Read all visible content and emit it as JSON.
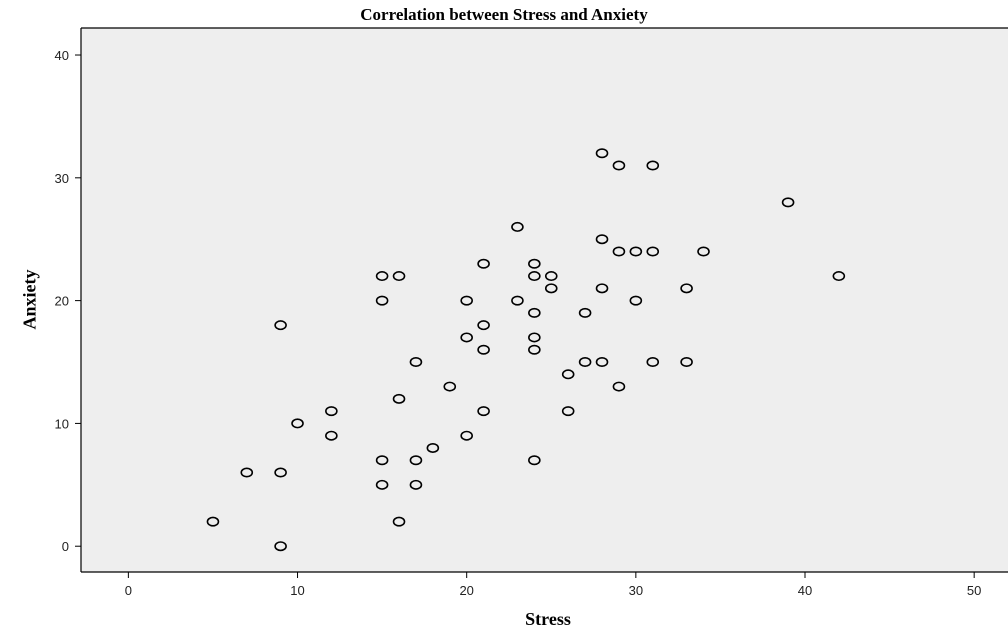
{
  "chart_data": {
    "type": "scatter",
    "title": "Correlation between Stress and Anxiety",
    "xlabel": "Stress",
    "ylabel": "Anxiety",
    "xlim": [
      -2.8,
      52
    ],
    "ylim": [
      -2.1,
      42.2
    ],
    "xticks": [
      0,
      10,
      20,
      30,
      40,
      50
    ],
    "yticks": [
      0,
      10,
      20,
      30,
      40
    ],
    "xtick_labels": [
      "0",
      "10",
      "20",
      "30",
      "40",
      "50"
    ],
    "ytick_labels": [
      "0",
      "10",
      "20",
      "30",
      "40"
    ],
    "grid": false,
    "plot_background": "#eeeeee",
    "marker_color": "#000000",
    "points": [
      {
        "x": 5,
        "y": 2
      },
      {
        "x": 7,
        "y": 6
      },
      {
        "x": 9,
        "y": 6
      },
      {
        "x": 9,
        "y": 0
      },
      {
        "x": 9,
        "y": 18
      },
      {
        "x": 10,
        "y": 10
      },
      {
        "x": 12,
        "y": 11
      },
      {
        "x": 12,
        "y": 9
      },
      {
        "x": 15,
        "y": 22
      },
      {
        "x": 15,
        "y": 20
      },
      {
        "x": 15,
        "y": 7
      },
      {
        "x": 15,
        "y": 5
      },
      {
        "x": 16,
        "y": 22
      },
      {
        "x": 16,
        "y": 12
      },
      {
        "x": 16,
        "y": 2
      },
      {
        "x": 17,
        "y": 15
      },
      {
        "x": 17,
        "y": 7
      },
      {
        "x": 17,
        "y": 5
      },
      {
        "x": 18,
        "y": 8
      },
      {
        "x": 19,
        "y": 13
      },
      {
        "x": 20,
        "y": 20
      },
      {
        "x": 20,
        "y": 17
      },
      {
        "x": 20,
        "y": 9
      },
      {
        "x": 21,
        "y": 23
      },
      {
        "x": 21,
        "y": 18
      },
      {
        "x": 21,
        "y": 16
      },
      {
        "x": 21,
        "y": 11
      },
      {
        "x": 23,
        "y": 26
      },
      {
        "x": 23,
        "y": 20
      },
      {
        "x": 24,
        "y": 23
      },
      {
        "x": 24,
        "y": 22
      },
      {
        "x": 24,
        "y": 19
      },
      {
        "x": 24,
        "y": 17
      },
      {
        "x": 24,
        "y": 16
      },
      {
        "x": 24,
        "y": 7
      },
      {
        "x": 25,
        "y": 22
      },
      {
        "x": 25,
        "y": 21
      },
      {
        "x": 26,
        "y": 14
      },
      {
        "x": 26,
        "y": 11
      },
      {
        "x": 27,
        "y": 19
      },
      {
        "x": 27,
        "y": 15
      },
      {
        "x": 28,
        "y": 32
      },
      {
        "x": 28,
        "y": 25
      },
      {
        "x": 28,
        "y": 21
      },
      {
        "x": 28,
        "y": 15
      },
      {
        "x": 29,
        "y": 31
      },
      {
        "x": 29,
        "y": 24
      },
      {
        "x": 29,
        "y": 13
      },
      {
        "x": 30,
        "y": 24
      },
      {
        "x": 30,
        "y": 20
      },
      {
        "x": 31,
        "y": 31
      },
      {
        "x": 31,
        "y": 24
      },
      {
        "x": 31,
        "y": 15
      },
      {
        "x": 33,
        "y": 21
      },
      {
        "x": 33,
        "y": 15
      },
      {
        "x": 34,
        "y": 24
      },
      {
        "x": 39,
        "y": 28
      },
      {
        "x": 42,
        "y": 22
      }
    ]
  }
}
